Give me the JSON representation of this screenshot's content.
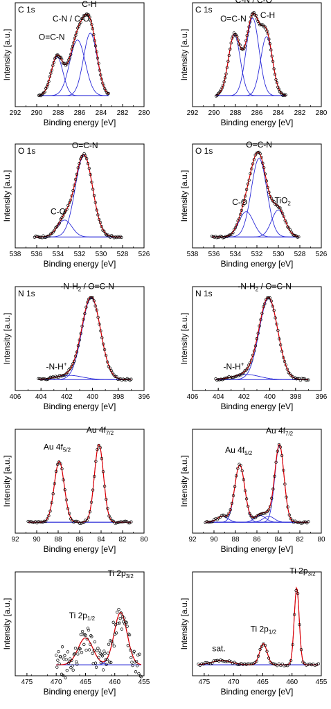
{
  "charts": [
    {
      "id": "c1s-a",
      "col": 0,
      "row": 0,
      "corner": "C 1s",
      "xlabel": "Binding energy [eV]",
      "ylabel": "Intensity [a.u.]",
      "xlim": [
        292,
        280
      ],
      "xticks": [
        "292",
        "290",
        "288",
        "286",
        "284",
        "282",
        "280"
      ],
      "peaks": [
        {
          "center": 288.1,
          "height": 0.46,
          "fwhm": 1.3
        },
        {
          "center": 286.2,
          "height": 0.66,
          "fwhm": 1.7
        },
        {
          "center": 285.0,
          "height": 0.74,
          "fwhm": 1.5
        }
      ],
      "range": [
        289.8,
        283.3
      ],
      "labels": [
        {
          "text": "C-H",
          "x": 285.1,
          "y": 1.05
        },
        {
          "text": "C-N / C-O",
          "x": 286.8,
          "y": 0.88
        },
        {
          "text": "O=C-N",
          "x": 288.6,
          "y": 0.66
        }
      ]
    },
    {
      "id": "c1s-b",
      "col": 1,
      "row": 0,
      "corner": "C 1s",
      "xlabel": "Binding energy [eV]",
      "ylabel": "Intensity [a.u.]",
      "xlim": [
        292,
        280
      ],
      "xticks": [
        "292",
        "290",
        "288",
        "286",
        "284",
        "282",
        "280"
      ],
      "peaks": [
        {
          "center": 288.1,
          "height": 0.72,
          "fwhm": 1.3
        },
        {
          "center": 286.4,
          "height": 0.92,
          "fwhm": 1.4
        },
        {
          "center": 285.1,
          "height": 0.7,
          "fwhm": 1.3
        }
      ],
      "range": [
        289.8,
        283.3
      ],
      "labels": [
        {
          "text": "C-N / C-O",
          "x": 286.3,
          "y": 1.1
        },
        {
          "text": "O=C-N",
          "x": 288.2,
          "y": 0.88
        },
        {
          "text": "C-H",
          "x": 285.0,
          "y": 0.92
        }
      ]
    },
    {
      "id": "o1s-a",
      "col": 0,
      "row": 1,
      "corner": "O 1s",
      "xlabel": "Binding energy [eV]",
      "ylabel": "Intensity [a.u.]",
      "xlim": [
        538,
        526
      ],
      "xticks": [
        "538",
        "536",
        "534",
        "532",
        "530",
        "528",
        "526"
      ],
      "peaks": [
        {
          "center": 533.4,
          "height": 0.2,
          "fwhm": 1.6
        },
        {
          "center": 531.6,
          "height": 0.97,
          "fwhm": 1.9
        }
      ],
      "range": [
        536.2,
        528.1
      ],
      "labels": [
        {
          "text": "O=C-N",
          "x": 531.5,
          "y": 1.05
        },
        {
          "text": "C-O",
          "x": 534.0,
          "y": 0.27
        }
      ]
    },
    {
      "id": "o1s-b",
      "col": 1,
      "row": 1,
      "corner": "O 1s",
      "xlabel": "Binding energy [eV]",
      "ylabel": "Intensity [a.u.]",
      "xlim": [
        538,
        526
      ],
      "xticks": [
        "538",
        "536",
        "534",
        "532",
        "530",
        "528",
        "526"
      ],
      "peaks": [
        {
          "center": 533.0,
          "height": 0.3,
          "fwhm": 1.6
        },
        {
          "center": 531.8,
          "height": 0.93,
          "fwhm": 1.7
        },
        {
          "center": 530.0,
          "height": 0.32,
          "fwhm": 1.5
        }
      ],
      "range": [
        536.2,
        528.1
      ],
      "labels": [
        {
          "text": "O=C-N",
          "x": 531.8,
          "y": 1.06
        },
        {
          "text": "C-O",
          "x": 533.6,
          "y": 0.38
        },
        {
          "text": "TiO",
          "sub": "2",
          "x": 529.6,
          "y": 0.4
        }
      ]
    },
    {
      "id": "n1s-a",
      "col": 0,
      "row": 2,
      "corner": "N 1s",
      "xlabel": "Binding energy [eV]",
      "ylabel": "Intensity [a.u.]",
      "xlim": [
        406,
        396
      ],
      "xticks": [
        "406",
        "404",
        "402",
        "400",
        "398",
        "396"
      ],
      "peaks": [
        {
          "center": 401.8,
          "height": 0.05,
          "fwhm": 2.4
        },
        {
          "center": 400.1,
          "height": 0.97,
          "fwhm": 1.7
        }
      ],
      "range": [
        404.2,
        397.0
      ],
      "labels": [
        {
          "text": "-N-H",
          "sub": "2",
          "tail": " / O=C-N",
          "x": 400.4,
          "y": 1.07
        },
        {
          "text": "-N-H",
          "sup": "+",
          "x": 402.8,
          "y": 0.12
        }
      ]
    },
    {
      "id": "n1s-b",
      "col": 1,
      "row": 2,
      "corner": "N 1s",
      "xlabel": "Binding energy [eV]",
      "ylabel": "Intensity [a.u.]",
      "xlim": [
        406,
        396
      ],
      "xticks": [
        "406",
        "404",
        "402",
        "400",
        "398",
        "396"
      ],
      "peaks": [
        {
          "center": 401.8,
          "height": 0.06,
          "fwhm": 2.4
        },
        {
          "center": 400.1,
          "height": 0.96,
          "fwhm": 1.7
        }
      ],
      "range": [
        404.2,
        397.0
      ],
      "labels": [
        {
          "text": "-N-H",
          "sub": "2",
          "tail": " / O=C-N",
          "x": 400.4,
          "y": 1.07
        },
        {
          "text": "-N-H",
          "sup": "+",
          "x": 402.8,
          "y": 0.12
        }
      ]
    },
    {
      "id": "au4f-a",
      "col": 0,
      "row": 3,
      "corner": "",
      "xlabel": "Binding energy [eV]",
      "ylabel": "Intensity [a.u.]",
      "xlim": [
        92,
        80
      ],
      "xticks": [
        "92",
        "90",
        "88",
        "86",
        "84",
        "82",
        "80"
      ],
      "peaks": [
        {
          "center": 87.9,
          "height": 0.72,
          "fwhm": 1.1
        },
        {
          "center": 84.2,
          "height": 0.92,
          "fwhm": 1.0
        }
      ],
      "range": [
        90.8,
        81.2
      ],
      "labels": [
        {
          "text": "Au 4f",
          "sub": "5/2",
          "x": 88.1,
          "y": 0.86
        },
        {
          "text": "Au 4f",
          "sub": "7/2",
          "x": 84.1,
          "y": 1.06
        }
      ]
    },
    {
      "id": "au4f-b",
      "col": 1,
      "row": 3,
      "corner": "",
      "xlabel": "Binding energy [eV]",
      "ylabel": "Intensity [a.u.]",
      "xlim": [
        92,
        80
      ],
      "xticks": [
        "92",
        "90",
        "88",
        "86",
        "84",
        "82",
        "80"
      ],
      "peaks": [
        {
          "center": 89.2,
          "height": 0.07,
          "fwhm": 1.2
        },
        {
          "center": 87.6,
          "height": 0.68,
          "fwhm": 1.1
        },
        {
          "center": 85.7,
          "height": 0.08,
          "fwhm": 1.2
        },
        {
          "center": 84.9,
          "height": 0.07,
          "fwhm": 1.2
        },
        {
          "center": 83.9,
          "height": 0.91,
          "fwhm": 1.0
        }
      ],
      "range": [
        90.8,
        81.2
      ],
      "labels": [
        {
          "text": "Au 4f",
          "sub": "5/2",
          "x": 87.7,
          "y": 0.82
        },
        {
          "text": "Au 4f",
          "sub": "7/2",
          "x": 83.9,
          "y": 1.05
        }
      ]
    },
    {
      "id": "ti2p-a",
      "col": 0,
      "row": 4,
      "corner": "",
      "xlabel": "Binding energy [eV]",
      "ylabel": "Intensity [a.u.]",
      "xlim": [
        477,
        455
      ],
      "xticks": [
        "475",
        "470",
        "465",
        "460",
        "455"
      ],
      "noisy": true,
      "peaks": [
        {
          "center": 465.0,
          "height": 0.32,
          "fwhm": 3.0
        },
        {
          "center": 459.0,
          "height": 0.62,
          "fwhm": 2.6
        }
      ],
      "range": [
        470.0,
        455.5
      ],
      "labels": [
        {
          "text": "Ti 2p",
          "sub": "1/2",
          "x": 465.6,
          "y": 0.55
        },
        {
          "text": "Ti 2p",
          "sub": "3/2",
          "x": 459.0,
          "y": 1.05
        }
      ]
    },
    {
      "id": "ti2p-b",
      "col": 1,
      "row": 4,
      "corner": "",
      "xlabel": "Binding energy [eV]",
      "ylabel": "Intensity [a.u.]",
      "xlim": [
        477,
        455
      ],
      "xticks": [
        "475",
        "470",
        "465",
        "460",
        "455"
      ],
      "peaks": [
        {
          "center": 472.0,
          "height": 0.05,
          "fwhm": 4.0
        },
        {
          "center": 464.9,
          "height": 0.25,
          "fwhm": 1.5
        },
        {
          "center": 459.2,
          "height": 0.92,
          "fwhm": 1.0
        }
      ],
      "range": [
        476.0,
        455.5
      ],
      "labels": [
        {
          "text": "sat.",
          "x": 472.5,
          "y": 0.16
        },
        {
          "text": "Ti 2p",
          "sub": "1/2",
          "x": 464.9,
          "y": 0.39
        },
        {
          "text": "Ti 2p",
          "sub": "3/2",
          "x": 458.2,
          "y": 1.08
        }
      ]
    }
  ],
  "colors": {
    "data_points": "#000000",
    "fit_envelope": "#e00000",
    "components": "#2a2ad8",
    "axes": "#000000"
  },
  "chart_data": [
    {
      "type": "line",
      "title": "C 1s",
      "xlabel": "Binding energy [eV]",
      "ylabel": "Intensity [a.u.]",
      "xlim": [
        292,
        280
      ],
      "series": [
        {
          "values": [
            [
              288.1,
              0.46
            ],
            [
              286.2,
              0.66
            ],
            [
              285.0,
              0.74
            ]
          ]
        }
      ]
    },
    {
      "type": "line",
      "title": "C 1s",
      "xlabel": "Binding energy [eV]",
      "ylabel": "Intensity [a.u.]",
      "xlim": [
        292,
        280
      ],
      "series": [
        {
          "values": [
            [
              288.1,
              0.72
            ],
            [
              286.4,
              0.92
            ],
            [
              285.1,
              0.7
            ]
          ]
        }
      ]
    },
    {
      "type": "line",
      "title": "O 1s",
      "xlabel": "Binding energy [eV]",
      "ylabel": "Intensity [a.u.]",
      "xlim": [
        538,
        526
      ],
      "series": [
        {
          "values": [
            [
              533.4,
              0.2
            ],
            [
              531.6,
              0.97
            ]
          ]
        }
      ]
    },
    {
      "type": "line",
      "title": "O 1s",
      "xlabel": "Binding energy [eV]",
      "ylabel": "Intensity [a.u.]",
      "xlim": [
        538,
        526
      ],
      "series": [
        {
          "values": [
            [
              533.0,
              0.3
            ],
            [
              531.8,
              0.93
            ],
            [
              530.0,
              0.32
            ]
          ]
        }
      ]
    },
    {
      "type": "line",
      "title": "N 1s",
      "xlabel": "Binding energy [eV]",
      "ylabel": "Intensity [a.u.]",
      "xlim": [
        406,
        396
      ],
      "series": [
        {
          "values": [
            [
              401.8,
              0.05
            ],
            [
              400.1,
              0.97
            ]
          ]
        }
      ]
    },
    {
      "type": "line",
      "title": "N 1s",
      "xlabel": "Binding energy [eV]",
      "ylabel": "Intensity [a.u.]",
      "xlim": [
        406,
        396
      ],
      "series": [
        {
          "values": [
            [
              401.8,
              0.06
            ],
            [
              400.1,
              0.96
            ]
          ]
        }
      ]
    },
    {
      "type": "line",
      "title": "",
      "xlabel": "Binding energy [eV]",
      "ylabel": "Intensity [a.u.]",
      "xlim": [
        92,
        80
      ],
      "series": [
        {
          "values": [
            [
              87.9,
              0.72
            ],
            [
              84.2,
              0.92
            ]
          ]
        }
      ]
    },
    {
      "type": "line",
      "title": "",
      "xlabel": "Binding energy [eV]",
      "ylabel": "Intensity [a.u.]",
      "xlim": [
        92,
        80
      ],
      "series": [
        {
          "values": [
            [
              87.6,
              0.68
            ],
            [
              83.9,
              0.91
            ]
          ]
        }
      ]
    },
    {
      "type": "scatter",
      "title": "",
      "xlabel": "Binding energy [eV]",
      "ylabel": "Intensity [a.u.]",
      "xlim": [
        477,
        455
      ],
      "series": [
        {
          "values": [
            [
              465.0,
              0.32
            ],
            [
              459.0,
              0.62
            ]
          ]
        }
      ]
    },
    {
      "type": "line",
      "title": "",
      "xlabel": "Binding energy [eV]",
      "ylabel": "Intensity [a.u.]",
      "xlim": [
        477,
        455
      ],
      "series": [
        {
          "values": [
            [
              472.0,
              0.05
            ],
            [
              464.9,
              0.25
            ],
            [
              459.2,
              0.92
            ]
          ]
        }
      ]
    }
  ]
}
